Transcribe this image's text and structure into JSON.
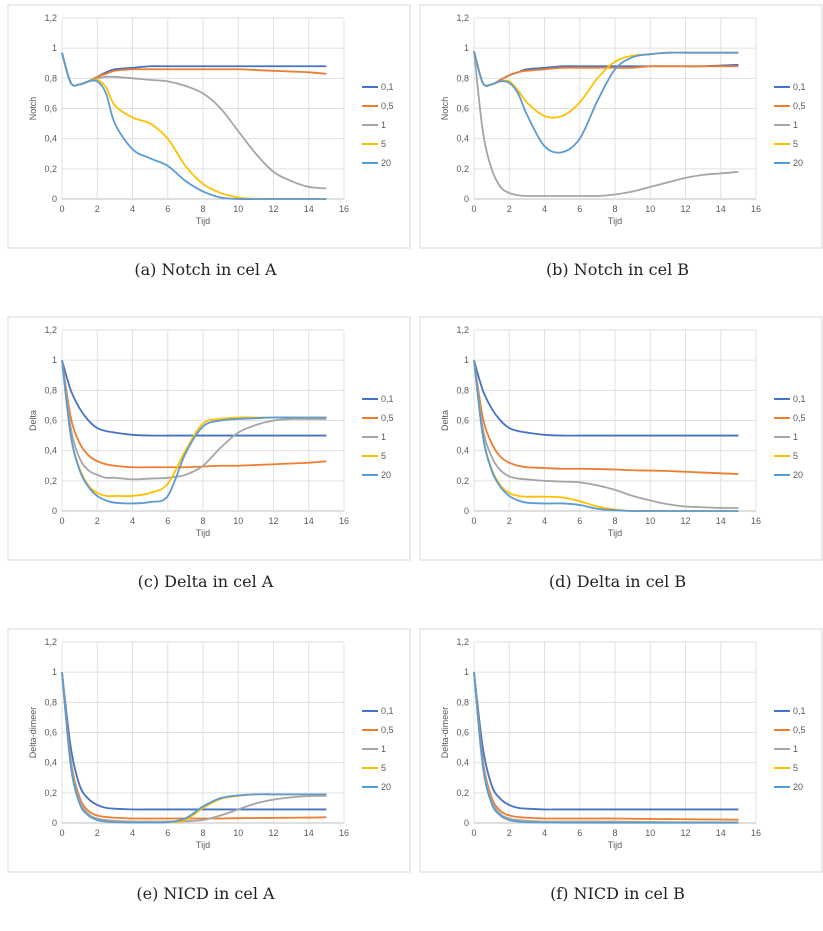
{
  "legend_colors": [
    "#4472C4",
    "#ED7D31",
    "#A5A5A5",
    "#FFC000",
    "#5B9BD5"
  ],
  "chart_data": [
    {
      "type": "line",
      "caption": "(a) Notch in cel A",
      "xlabel": "Tijd",
      "ylabel": "Notch",
      "xlim": [
        0,
        16
      ],
      "ylim": [
        0,
        1.2
      ],
      "xticks": [
        "0",
        "2",
        "4",
        "6",
        "8",
        "10",
        "12",
        "14",
        "16"
      ],
      "yticks": [
        "0",
        "0,2",
        "0,4",
        "0,6",
        "0,8",
        "1",
        "1,2"
      ],
      "grid": true,
      "legend": "right",
      "x": [
        0,
        0.5,
        1,
        1.5,
        2,
        2.5,
        3,
        4,
        5,
        6,
        7,
        8,
        9,
        10,
        11,
        12,
        13,
        14,
        15
      ],
      "series": [
        {
          "name": "0,1",
          "values": [
            0.97,
            0.77,
            0.76,
            0.78,
            0.81,
            0.84,
            0.86,
            0.87,
            0.88,
            0.88,
            0.88,
            0.88,
            0.88,
            0.88,
            0.88,
            0.88,
            0.88,
            0.88,
            0.88
          ]
        },
        {
          "name": "0,5",
          "values": [
            0.97,
            0.77,
            0.76,
            0.78,
            0.81,
            0.83,
            0.85,
            0.86,
            0.86,
            0.86,
            0.86,
            0.86,
            0.86,
            0.86,
            0.855,
            0.85,
            0.845,
            0.84,
            0.83
          ]
        },
        {
          "name": "1",
          "values": [
            0.97,
            0.77,
            0.76,
            0.78,
            0.8,
            0.81,
            0.81,
            0.8,
            0.79,
            0.78,
            0.75,
            0.7,
            0.6,
            0.45,
            0.3,
            0.18,
            0.12,
            0.08,
            0.07
          ]
        },
        {
          "name": "5",
          "values": [
            0.97,
            0.77,
            0.76,
            0.78,
            0.79,
            0.74,
            0.62,
            0.54,
            0.5,
            0.4,
            0.22,
            0.1,
            0.04,
            0.01,
            0.0,
            0.0,
            0.0,
            0.0,
            0.0
          ]
        },
        {
          "name": "20",
          "values": [
            0.97,
            0.77,
            0.76,
            0.78,
            0.78,
            0.7,
            0.5,
            0.33,
            0.27,
            0.22,
            0.12,
            0.05,
            0.01,
            0.0,
            0.0,
            0.0,
            0.0,
            0.0,
            0.0
          ]
        }
      ]
    },
    {
      "type": "line",
      "caption": "(b) Notch in cel B",
      "xlabel": "Tijd",
      "ylabel": "Notch",
      "xlim": [
        0,
        16
      ],
      "ylim": [
        0,
        1.2
      ],
      "xticks": [
        "0",
        "2",
        "4",
        "6",
        "8",
        "10",
        "12",
        "14",
        "16"
      ],
      "yticks": [
        "0",
        "0,2",
        "0,4",
        "0,6",
        "0,8",
        "1",
        "1,2"
      ],
      "grid": true,
      "legend": "right",
      "x": [
        0,
        0.5,
        1,
        1.5,
        2,
        2.5,
        3,
        4,
        5,
        6,
        7,
        8,
        9,
        10,
        11,
        12,
        13,
        14,
        15
      ],
      "series": [
        {
          "name": "0,1",
          "values": [
            0.98,
            0.77,
            0.76,
            0.79,
            0.82,
            0.84,
            0.86,
            0.87,
            0.88,
            0.88,
            0.88,
            0.88,
            0.88,
            0.88,
            0.88,
            0.88,
            0.88,
            0.885,
            0.89
          ]
        },
        {
          "name": "0,5",
          "values": [
            0.98,
            0.77,
            0.76,
            0.79,
            0.82,
            0.84,
            0.85,
            0.86,
            0.87,
            0.87,
            0.87,
            0.87,
            0.87,
            0.88,
            0.88,
            0.88,
            0.88,
            0.88,
            0.88
          ]
        },
        {
          "name": "1",
          "values": [
            0.98,
            0.45,
            0.2,
            0.08,
            0.04,
            0.025,
            0.02,
            0.02,
            0.02,
            0.02,
            0.02,
            0.03,
            0.05,
            0.08,
            0.11,
            0.14,
            0.16,
            0.17,
            0.18
          ]
        },
        {
          "name": "5",
          "values": [
            0.98,
            0.77,
            0.76,
            0.78,
            0.78,
            0.72,
            0.64,
            0.55,
            0.55,
            0.64,
            0.8,
            0.91,
            0.95,
            0.96,
            0.97,
            0.97,
            0.97,
            0.97,
            0.97
          ]
        },
        {
          "name": "20",
          "values": [
            0.98,
            0.77,
            0.76,
            0.78,
            0.77,
            0.7,
            0.56,
            0.35,
            0.31,
            0.4,
            0.65,
            0.86,
            0.94,
            0.96,
            0.97,
            0.97,
            0.97,
            0.97,
            0.97
          ]
        }
      ]
    },
    {
      "type": "line",
      "caption": "(c) Delta in cel A",
      "xlabel": "Tijd",
      "ylabel": "Delta",
      "xlim": [
        0,
        16
      ],
      "ylim": [
        0,
        1.2
      ],
      "xticks": [
        "0",
        "2",
        "4",
        "6",
        "8",
        "10",
        "12",
        "14",
        "16"
      ],
      "yticks": [
        "0",
        "0,2",
        "0,4",
        "0,6",
        "0,8",
        "1",
        "1,2"
      ],
      "grid": true,
      "legend": "right",
      "x": [
        0,
        0.5,
        1,
        1.5,
        2,
        2.5,
        3,
        4,
        5,
        6,
        7,
        8,
        9,
        10,
        11,
        12,
        13,
        14,
        15
      ],
      "series": [
        {
          "name": "0,1",
          "values": [
            1.0,
            0.8,
            0.68,
            0.6,
            0.55,
            0.53,
            0.52,
            0.505,
            0.5,
            0.5,
            0.5,
            0.5,
            0.5,
            0.5,
            0.5,
            0.5,
            0.5,
            0.5,
            0.5
          ]
        },
        {
          "name": "0,5",
          "values": [
            1.0,
            0.62,
            0.45,
            0.37,
            0.33,
            0.31,
            0.3,
            0.29,
            0.29,
            0.29,
            0.29,
            0.295,
            0.3,
            0.3,
            0.305,
            0.31,
            0.315,
            0.32,
            0.33
          ]
        },
        {
          "name": "1",
          "values": [
            1.0,
            0.55,
            0.35,
            0.27,
            0.24,
            0.22,
            0.22,
            0.21,
            0.215,
            0.22,
            0.24,
            0.3,
            0.42,
            0.52,
            0.57,
            0.6,
            0.61,
            0.61,
            0.61
          ]
        },
        {
          "name": "5",
          "values": [
            1.0,
            0.5,
            0.28,
            0.17,
            0.12,
            0.1,
            0.1,
            0.1,
            0.12,
            0.18,
            0.4,
            0.58,
            0.61,
            0.62,
            0.62,
            0.62,
            0.62,
            0.62,
            0.62
          ]
        },
        {
          "name": "20",
          "values": [
            1.0,
            0.5,
            0.27,
            0.16,
            0.1,
            0.07,
            0.055,
            0.05,
            0.06,
            0.1,
            0.38,
            0.56,
            0.6,
            0.61,
            0.615,
            0.62,
            0.62,
            0.62,
            0.62
          ]
        }
      ]
    },
    {
      "type": "line",
      "caption": "(d) Delta in cel B",
      "xlabel": "Tijd",
      "ylabel": "Delta",
      "xlim": [
        0,
        16
      ],
      "ylim": [
        0,
        1.2
      ],
      "xticks": [
        "0",
        "2",
        "4",
        "6",
        "8",
        "10",
        "12",
        "14",
        "16"
      ],
      "yticks": [
        "0",
        "0,2",
        "0,4",
        "0,6",
        "0,8",
        "1",
        "1,2"
      ],
      "grid": true,
      "legend": "right",
      "x": [
        0,
        0.5,
        1,
        1.5,
        2,
        2.5,
        3,
        4,
        5,
        6,
        7,
        8,
        9,
        10,
        11,
        12,
        13,
        14,
        15
      ],
      "series": [
        {
          "name": "0,1",
          "values": [
            1.0,
            0.8,
            0.68,
            0.6,
            0.55,
            0.53,
            0.52,
            0.505,
            0.5,
            0.5,
            0.5,
            0.5,
            0.5,
            0.5,
            0.5,
            0.5,
            0.5,
            0.5,
            0.5
          ]
        },
        {
          "name": "0,5",
          "values": [
            1.0,
            0.62,
            0.45,
            0.36,
            0.32,
            0.3,
            0.29,
            0.285,
            0.28,
            0.28,
            0.278,
            0.275,
            0.27,
            0.268,
            0.265,
            0.26,
            0.255,
            0.25,
            0.245
          ]
        },
        {
          "name": "1",
          "values": [
            1.0,
            0.55,
            0.36,
            0.27,
            0.23,
            0.215,
            0.21,
            0.2,
            0.195,
            0.19,
            0.17,
            0.14,
            0.1,
            0.07,
            0.045,
            0.03,
            0.025,
            0.02,
            0.02
          ]
        },
        {
          "name": "5",
          "values": [
            1.0,
            0.5,
            0.28,
            0.17,
            0.12,
            0.1,
            0.095,
            0.095,
            0.09,
            0.065,
            0.03,
            0.01,
            0.0,
            0.0,
            0.0,
            0.0,
            0.0,
            0.0,
            0.0
          ]
        },
        {
          "name": "20",
          "values": [
            1.0,
            0.5,
            0.27,
            0.16,
            0.1,
            0.07,
            0.055,
            0.05,
            0.05,
            0.04,
            0.015,
            0.005,
            0.0,
            0.0,
            0.0,
            0.0,
            0.0,
            0.0,
            0.0
          ]
        }
      ]
    },
    {
      "type": "line",
      "caption": "(e) NICD in cel A",
      "xlabel": "Tijd",
      "ylabel": "Delta-dimeer",
      "xlim": [
        0,
        16
      ],
      "ylim": [
        0,
        1.2
      ],
      "xticks": [
        "0",
        "2",
        "4",
        "6",
        "8",
        "10",
        "12",
        "14",
        "16"
      ],
      "yticks": [
        "0",
        "0,2",
        "0,4",
        "0,6",
        "0,8",
        "1",
        "1,2"
      ],
      "grid": true,
      "legend": "right",
      "x": [
        0,
        0.5,
        1,
        1.5,
        2,
        2.5,
        3,
        4,
        5,
        6,
        7,
        8,
        9,
        10,
        11,
        12,
        13,
        14,
        15
      ],
      "series": [
        {
          "name": "0,1",
          "values": [
            1.0,
            0.5,
            0.25,
            0.16,
            0.12,
            0.1,
            0.095,
            0.09,
            0.09,
            0.09,
            0.09,
            0.09,
            0.09,
            0.09,
            0.09,
            0.09,
            0.09,
            0.09,
            0.09
          ]
        },
        {
          "name": "0,5",
          "values": [
            1.0,
            0.42,
            0.17,
            0.08,
            0.05,
            0.04,
            0.035,
            0.03,
            0.03,
            0.03,
            0.03,
            0.03,
            0.03,
            0.032,
            0.033,
            0.034,
            0.035,
            0.036,
            0.038
          ]
        },
        {
          "name": "1",
          "values": [
            1.0,
            0.4,
            0.15,
            0.06,
            0.03,
            0.02,
            0.015,
            0.01,
            0.01,
            0.01,
            0.012,
            0.02,
            0.05,
            0.09,
            0.13,
            0.155,
            0.17,
            0.178,
            0.18
          ]
        },
        {
          "name": "5",
          "values": [
            1.0,
            0.38,
            0.13,
            0.05,
            0.02,
            0.01,
            0.005,
            0.003,
            0.003,
            0.005,
            0.02,
            0.1,
            0.16,
            0.18,
            0.19,
            0.19,
            0.19,
            0.19,
            0.19
          ]
        },
        {
          "name": "20",
          "values": [
            1.0,
            0.38,
            0.13,
            0.05,
            0.02,
            0.01,
            0.005,
            0.003,
            0.003,
            0.005,
            0.03,
            0.11,
            0.165,
            0.183,
            0.19,
            0.19,
            0.19,
            0.19,
            0.19
          ]
        }
      ]
    },
    {
      "type": "line",
      "caption": "(f) NICD in cel B",
      "xlabel": "Tijd",
      "ylabel": "Delta-dimeer",
      "xlim": [
        0,
        16
      ],
      "ylim": [
        0,
        1.2
      ],
      "xticks": [
        "0",
        "2",
        "4",
        "6",
        "8",
        "10",
        "12",
        "14",
        "16"
      ],
      "yticks": [
        "0",
        "0,2",
        "0,4",
        "0,6",
        "0,8",
        "1",
        "1,2"
      ],
      "grid": true,
      "legend": "right",
      "x": [
        0,
        0.5,
        1,
        1.5,
        2,
        2.5,
        3,
        4,
        5,
        6,
        7,
        8,
        9,
        10,
        11,
        12,
        13,
        14,
        15
      ],
      "series": [
        {
          "name": "0,1",
          "values": [
            1.0,
            0.5,
            0.25,
            0.16,
            0.12,
            0.1,
            0.095,
            0.09,
            0.09,
            0.09,
            0.09,
            0.09,
            0.09,
            0.09,
            0.09,
            0.09,
            0.09,
            0.09,
            0.09
          ]
        },
        {
          "name": "0,5",
          "values": [
            1.0,
            0.42,
            0.17,
            0.08,
            0.05,
            0.04,
            0.035,
            0.03,
            0.03,
            0.03,
            0.03,
            0.03,
            0.028,
            0.027,
            0.026,
            0.025,
            0.024,
            0.023,
            0.022
          ]
        },
        {
          "name": "1",
          "values": [
            1.0,
            0.4,
            0.15,
            0.06,
            0.03,
            0.02,
            0.015,
            0.01,
            0.01,
            0.01,
            0.01,
            0.01,
            0.008,
            0.007,
            0.006,
            0.005,
            0.005,
            0.005,
            0.005
          ]
        },
        {
          "name": "5",
          "values": [
            1.0,
            0.38,
            0.13,
            0.05,
            0.02,
            0.01,
            0.005,
            0.003,
            0.003,
            0.003,
            0.002,
            0.002,
            0.002,
            0.002,
            0.002,
            0.002,
            0.002,
            0.002,
            0.002
          ]
        },
        {
          "name": "20",
          "values": [
            1.0,
            0.38,
            0.13,
            0.05,
            0.02,
            0.01,
            0.005,
            0.003,
            0.002,
            0.002,
            0.002,
            0.002,
            0.002,
            0.002,
            0.002,
            0.002,
            0.002,
            0.002,
            0.002
          ]
        }
      ]
    }
  ]
}
